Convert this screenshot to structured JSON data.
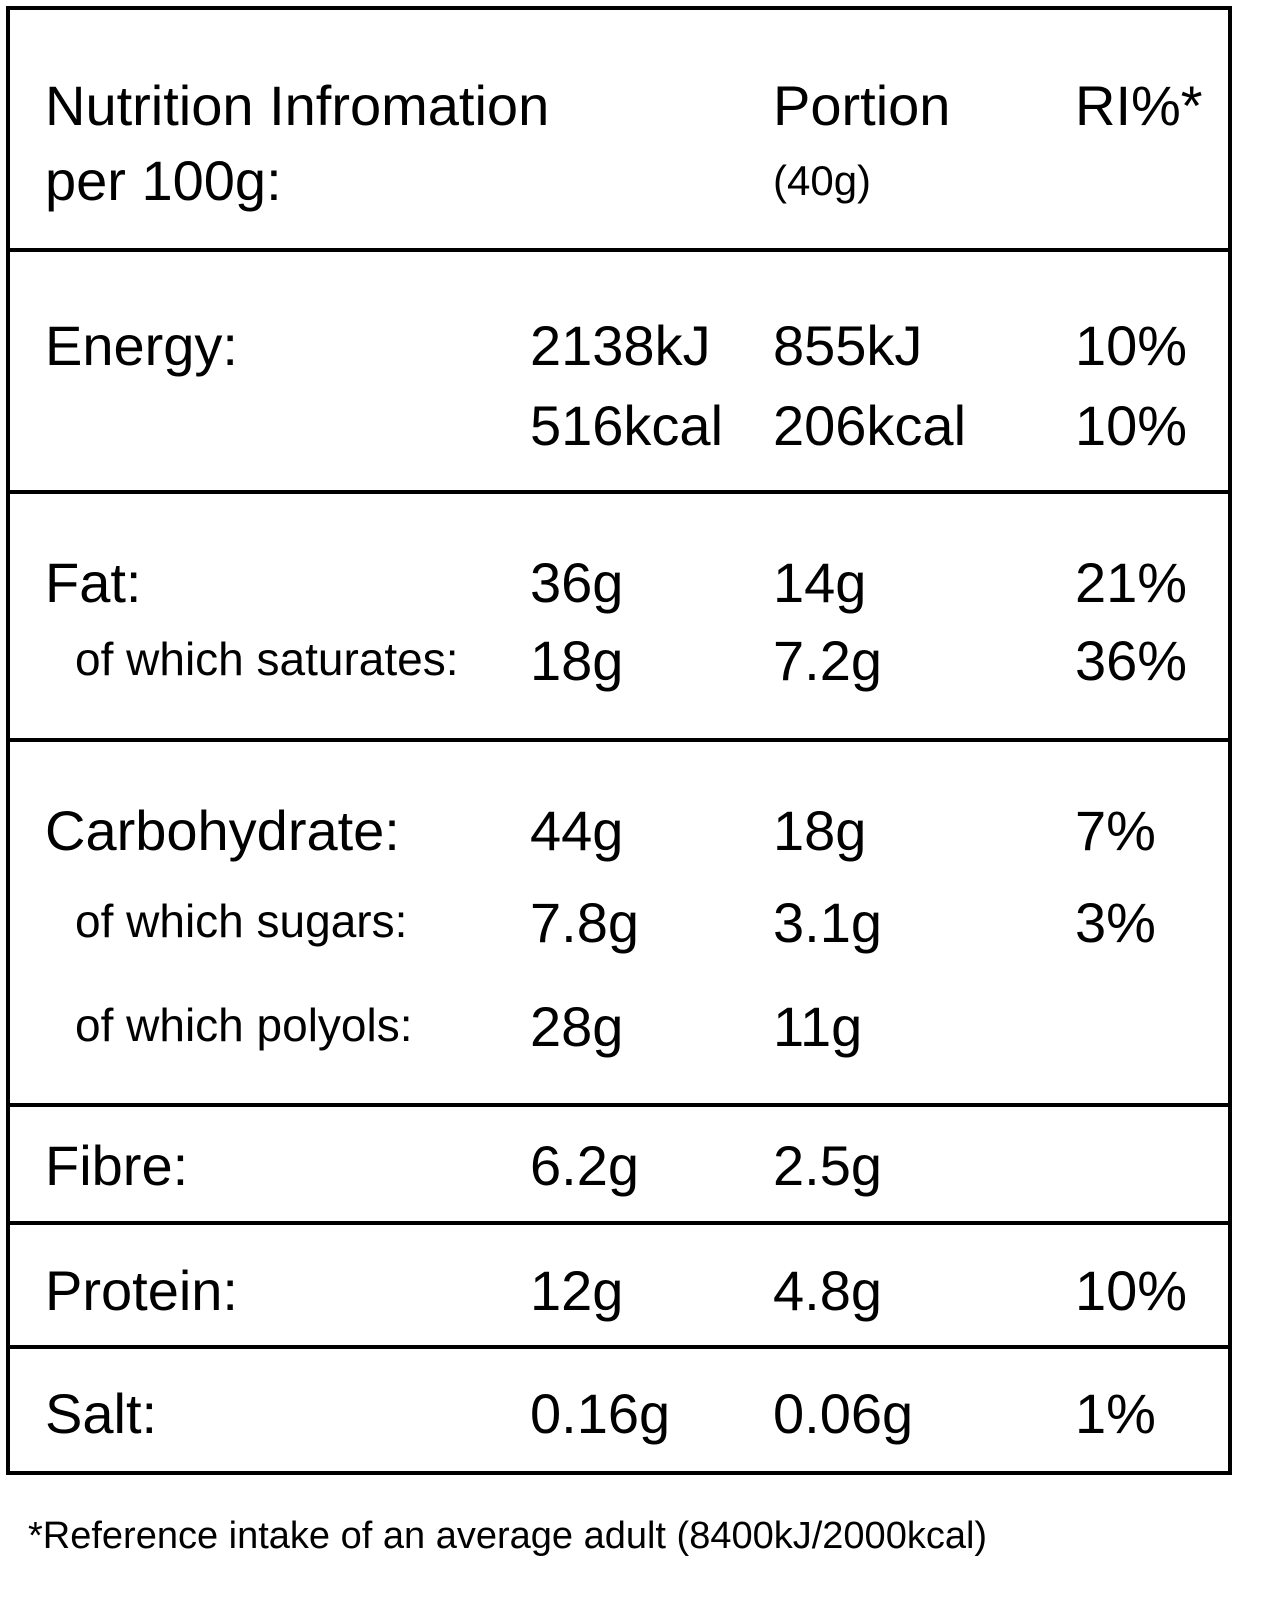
{
  "header": {
    "title": "Nutrition Infromation",
    "subtitle": "per 100g:",
    "portion": "Portion",
    "portion_size": "(40g)",
    "ri": "RI%*"
  },
  "table": {
    "sections": [
      {
        "rows": [
          {
            "label": "Energy:",
            "per100": "2138kJ",
            "portion": "855kJ",
            "ri": "10%"
          },
          {
            "per100": "516kcal",
            "portion": "206kcal",
            "ri": "10%"
          }
        ]
      },
      {
        "rows": [
          {
            "label": "Fat:",
            "per100": "36g",
            "portion": "14g",
            "ri": "21%"
          },
          {
            "label": "of which saturates:",
            "per100": "18g",
            "portion": "7.2g",
            "ri": "36%"
          }
        ]
      },
      {
        "rows": [
          {
            "label": "Carbohydrate:",
            "per100": "44g",
            "portion": "18g",
            "ri": "7%"
          },
          {
            "label": "of which sugars:",
            "per100": "7.8g",
            "portion": "3.1g",
            "ri": "3%"
          },
          {
            "label": "of which polyols:",
            "per100": "28g",
            "portion": "11g"
          }
        ]
      },
      {
        "rows": [
          {
            "label": "Fibre:",
            "per100": "6.2g",
            "portion": "2.5g"
          }
        ]
      },
      {
        "rows": [
          {
            "label": "Protein:",
            "per100": "12g",
            "portion": "4.8g",
            "ri": "10%"
          }
        ]
      },
      {
        "rows": [
          {
            "label": "Salt:",
            "per100": "0.16g",
            "portion": "0.06g",
            "ri": "1%"
          }
        ]
      }
    ]
  },
  "footnote": "*Reference intake of an average adult (8400kJ/2000kcal)"
}
